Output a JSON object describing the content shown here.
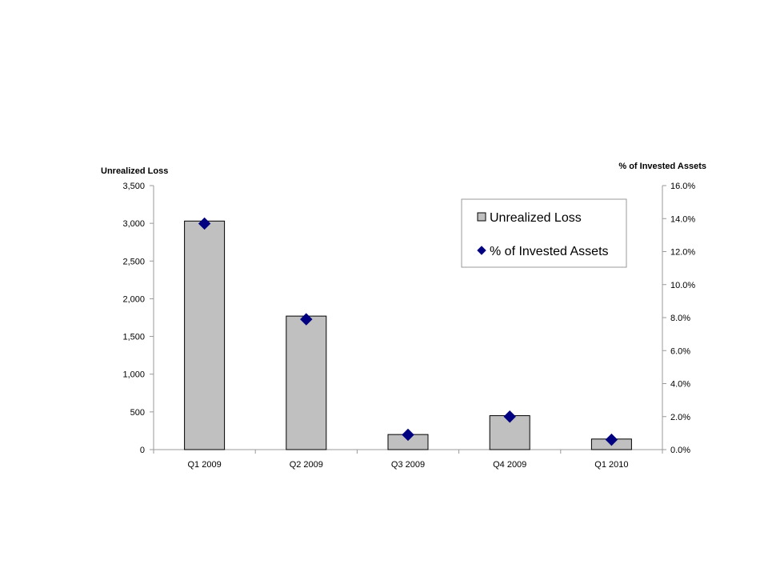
{
  "chart_data": {
    "type": "bar",
    "categories": [
      "Q1 2009",
      "Q2 2009",
      "Q3 2009",
      "Q4 2009",
      "Q1 2010"
    ],
    "series": [
      {
        "name": "Unrealized Loss",
        "kind": "bar",
        "axis": "left",
        "color": "#c0c0c0",
        "values": [
          3030,
          1770,
          200,
          450,
          140
        ]
      },
      {
        "name": "% of Invested Assets",
        "kind": "marker",
        "marker": "diamond",
        "axis": "right",
        "color": "#000080",
        "values": [
          13.7,
          7.9,
          0.9,
          2.0,
          0.6
        ]
      }
    ],
    "ylabel": "Unrealized Loss",
    "y2label": "% of Invested Assets",
    "ylim": [
      0,
      3500
    ],
    "yticks": [
      "0",
      "500",
      "1,000",
      "1,500",
      "2,000",
      "2,500",
      "3,000",
      "3,500"
    ],
    "y2lim": [
      0,
      16
    ],
    "y2ticks": [
      "0.0%",
      "2.0%",
      "4.0%",
      "6.0%",
      "8.0%",
      "10.0%",
      "12.0%",
      "14.0%",
      "16.0%"
    ],
    "grid": false,
    "legend_position": "top-right"
  }
}
